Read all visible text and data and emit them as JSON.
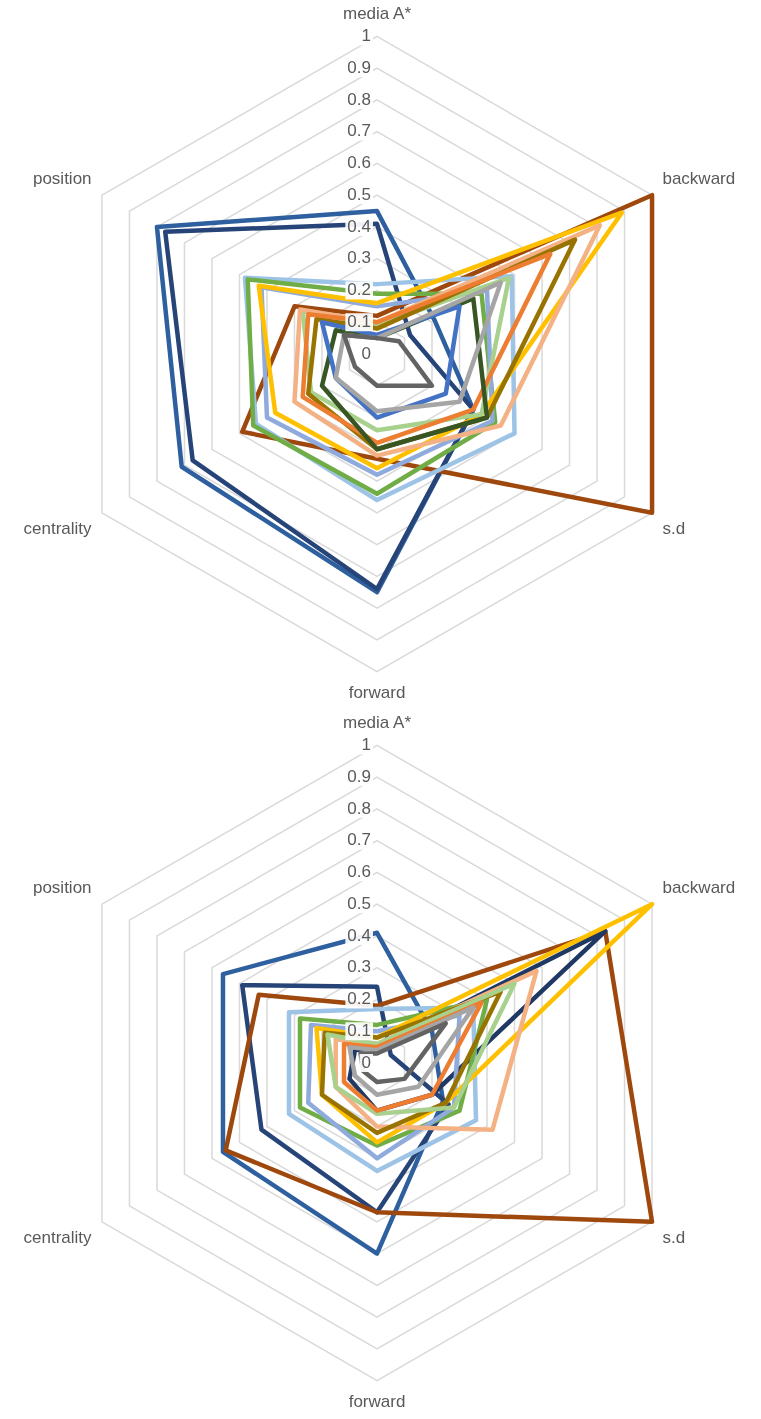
{
  "chart_data": [
    {
      "type": "radar",
      "categories": [
        "media A*",
        "backward",
        "s.d",
        "forward",
        "centrality",
        "position"
      ],
      "ylim": [
        0,
        1
      ],
      "yticks": [
        0,
        0.1,
        0.2,
        0.3,
        0.4,
        0.5,
        0.6,
        0.7,
        0.8,
        0.9,
        1
      ],
      "grid": true,
      "marker": "none",
      "line_style": "solid",
      "series": [
        {
          "color": "#636363",
          "values": [
            0.05,
            0.08,
            0.2,
            0.1,
            0.08,
            0.12
          ]
        },
        {
          "color": "#a5a5a5",
          "values": [
            0.05,
            0.45,
            0.3,
            0.18,
            0.15,
            0.12
          ]
        },
        {
          "color": "#4472c4",
          "values": [
            0.06,
            0.3,
            0.25,
            0.2,
            0.15,
            0.2
          ]
        },
        {
          "color": "#375623",
          "values": [
            0.05,
            0.35,
            0.4,
            0.3,
            0.2,
            0.15
          ]
        },
        {
          "color": "#ed7d31",
          "values": [
            0.1,
            0.63,
            0.35,
            0.28,
            0.27,
            0.25
          ]
        },
        {
          "color": "#997300",
          "values": [
            0.08,
            0.72,
            0.4,
            0.3,
            0.25,
            0.22
          ]
        },
        {
          "color": "#f4b183",
          "values": [
            0.1,
            0.81,
            0.45,
            0.32,
            0.3,
            0.28
          ]
        },
        {
          "color": "#a9d18e",
          "values": [
            0.09,
            0.48,
            0.38,
            0.24,
            0.24,
            0.27
          ]
        },
        {
          "color": "#ffc000",
          "values": [
            0.16,
            0.89,
            0.38,
            0.36,
            0.37,
            0.43
          ]
        },
        {
          "color": "#8faadc",
          "values": [
            0.15,
            0.4,
            0.42,
            0.38,
            0.4,
            0.42
          ]
        },
        {
          "color": "#70ad47",
          "values": [
            0.19,
            0.38,
            0.43,
            0.44,
            0.45,
            0.47
          ]
        },
        {
          "color": "#9dc3e6",
          "values": [
            0.22,
            0.49,
            0.5,
            0.46,
            0.44,
            0.48
          ]
        },
        {
          "color": "#9e480e",
          "values": [
            0.12,
            1,
            1,
            0.33,
            0.49,
            0.3
          ]
        },
        {
          "color": "#264478",
          "values": [
            0.41,
            0.12,
            0.35,
            0.74,
            0.67,
            0.77
          ]
        },
        {
          "color": "#2e5f9e",
          "values": [
            0.45,
            0.21,
            0.35,
            0.75,
            0.71,
            0.8
          ]
        }
      ]
    },
    {
      "type": "radar",
      "categories": [
        "media A*",
        "backward",
        "s.d",
        "forward",
        "centrality",
        "position"
      ],
      "ylim": [
        0,
        1
      ],
      "yticks": [
        0,
        0.1,
        0.2,
        0.3,
        0.4,
        0.5,
        0.6,
        0.7,
        0.8,
        0.9,
        1
      ],
      "grid": true,
      "marker": "none",
      "line_style": "solid",
      "series": [
        {
          "color": "#636363",
          "values": [
            0.03,
            0.25,
            0.1,
            0.06,
            0.05,
            0.06
          ]
        },
        {
          "color": "#a5a5a5",
          "values": [
            0.04,
            0.35,
            0.15,
            0.1,
            0.08,
            0.1
          ]
        },
        {
          "color": "#ed7d31",
          "values": [
            0.05,
            0.38,
            0.2,
            0.15,
            0.12,
            0.12
          ]
        },
        {
          "color": "#a9d18e",
          "values": [
            0.06,
            0.5,
            0.28,
            0.16,
            0.15,
            0.18
          ]
        },
        {
          "color": "#997300",
          "values": [
            0.08,
            0.45,
            0.25,
            0.22,
            0.2,
            0.19
          ]
        },
        {
          "color": "#f4b183",
          "values": [
            0.06,
            0.58,
            0.42,
            0.2,
            0.15,
            0.15
          ]
        },
        {
          "color": "#ffc000",
          "values": [
            0.08,
            1,
            0.25,
            0.25,
            0.2,
            0.22
          ]
        },
        {
          "color": "#8faadc",
          "values": [
            0.1,
            0.3,
            0.28,
            0.3,
            0.25,
            0.24
          ]
        },
        {
          "color": "#70ad47",
          "values": [
            0.12,
            0.4,
            0.3,
            0.26,
            0.28,
            0.28
          ]
        },
        {
          "color": "#9dc3e6",
          "values": [
            0.17,
            0.35,
            0.36,
            0.34,
            0.32,
            0.32
          ]
        },
        {
          "color": "#203864",
          "values": [
            0.05,
            0.83,
            0.2,
            0.15,
            0.1,
            0.08
          ]
        },
        {
          "color": "#9e480e",
          "values": [
            0.18,
            0.83,
            1,
            0.47,
            0.55,
            0.43
          ]
        },
        {
          "color": "#264478",
          "values": [
            0.24,
            0.05,
            0.26,
            0.47,
            0.42,
            0.49
          ]
        },
        {
          "color": "#2e5f9e",
          "values": [
            0.41,
            0.2,
            0.24,
            0.6,
            0.56,
            0.56
          ]
        }
      ]
    }
  ]
}
